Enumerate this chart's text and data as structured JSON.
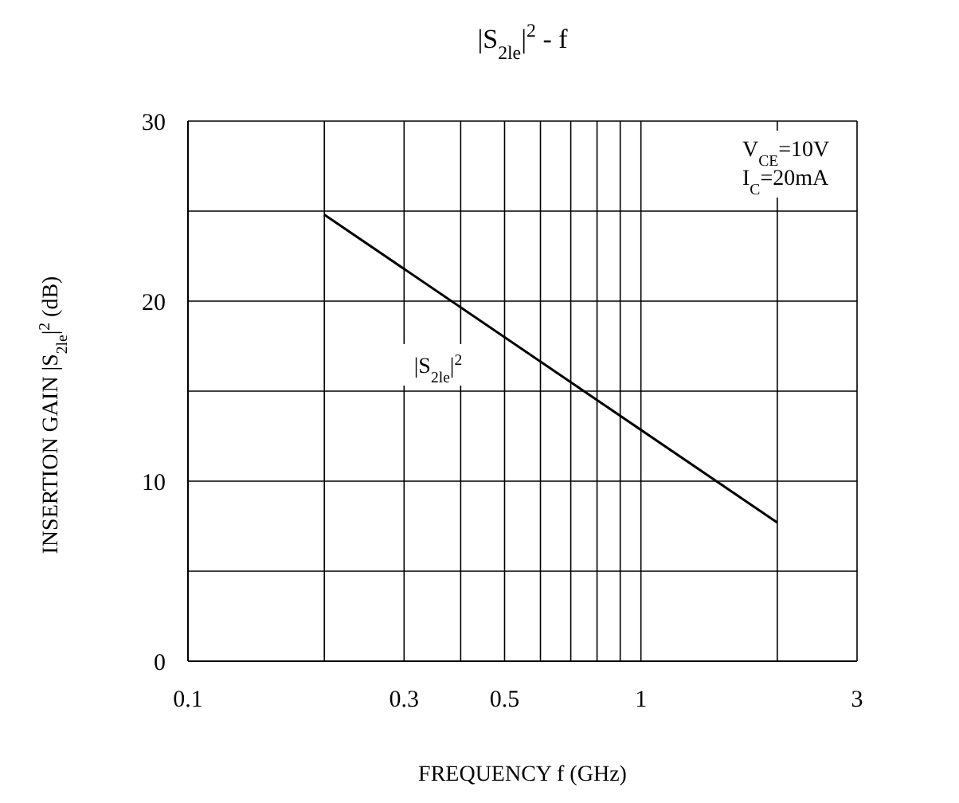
{
  "chart_data": {
    "type": "line",
    "title": "|S$_{2le}$|$^{2}$ - f",
    "xlabel": "FREQUENCY f (GHz)",
    "ylabel": "INSERTION GAIN |S$_{2le}$|$^{2}$ (dB)",
    "log": "x",
    "xlim": [
      0.1,
      3
    ],
    "ylim": [
      0,
      30
    ],
    "xticks": [
      0.1,
      {
        "value": 0.2,
        "label": null
      },
      0.3,
      {
        "value": 0.4,
        "label": null
      },
      0.5,
      {
        "value": 0.6,
        "label": null
      },
      {
        "value": 0.7,
        "label": null
      },
      {
        "value": 0.8,
        "label": null
      },
      {
        "value": 0.9,
        "label": null
      },
      1,
      {
        "value": 2,
        "label": null
      },
      3
    ],
    "yticks": [
      0,
      {
        "value": 5,
        "label": null
      },
      10,
      {
        "value": 15,
        "label": null
      },
      20,
      {
        "value": 25,
        "label": null
      },
      30
    ],
    "grid": true,
    "marker": "none",
    "line_style": "solid",
    "series": [
      {
        "color": "#000000",
        "x": [
          0.2,
          2
        ],
        "values": [
          24.8,
          7.7
        ]
      }
    ],
    "annotations": [
      "V$_{CE}$=10V",
      "I$_{C}$=20mA",
      "|S$_{2le}$|$^{2}$"
    ]
  }
}
